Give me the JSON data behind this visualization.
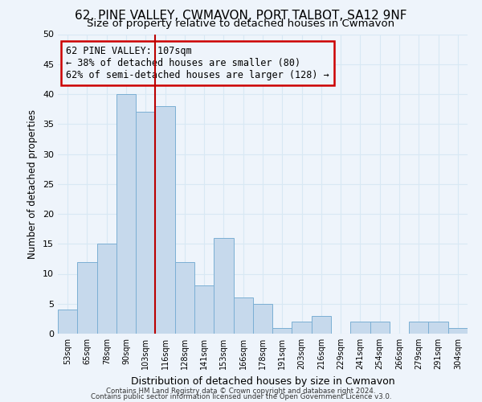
{
  "title": "62, PINE VALLEY, CWMAVON, PORT TALBOT, SA12 9NF",
  "subtitle": "Size of property relative to detached houses in Cwmavon",
  "xlabel": "Distribution of detached houses by size in Cwmavon",
  "ylabel": "Number of detached properties",
  "categories": [
    "53sqm",
    "65sqm",
    "78sqm",
    "90sqm",
    "103sqm",
    "116sqm",
    "128sqm",
    "141sqm",
    "153sqm",
    "166sqm",
    "178sqm",
    "191sqm",
    "203sqm",
    "216sqm",
    "229sqm",
    "241sqm",
    "254sqm",
    "266sqm",
    "279sqm",
    "291sqm",
    "304sqm"
  ],
  "values": [
    4,
    12,
    15,
    40,
    37,
    38,
    12,
    8,
    16,
    6,
    5,
    1,
    2,
    3,
    0,
    2,
    2,
    0,
    2,
    2,
    1
  ],
  "bar_color": "#c6d9ec",
  "bar_edge_color": "#7bafd4",
  "grid_color": "#d8e8f4",
  "vline_x": 4.5,
  "vline_color": "#bb0000",
  "annotation_text": "62 PINE VALLEY: 107sqm\n← 38% of detached houses are smaller (80)\n62% of semi-detached houses are larger (128) →",
  "annotation_box_edge": "#cc0000",
  "ylim": [
    0,
    50
  ],
  "yticks": [
    0,
    5,
    10,
    15,
    20,
    25,
    30,
    35,
    40,
    45,
    50
  ],
  "footer1": "Contains HM Land Registry data © Crown copyright and database right 2024.",
  "footer2": "Contains public sector information licensed under the Open Government Licence v3.0.",
  "background_color": "#eef4fb",
  "title_fontsize": 11,
  "subtitle_fontsize": 9.5
}
